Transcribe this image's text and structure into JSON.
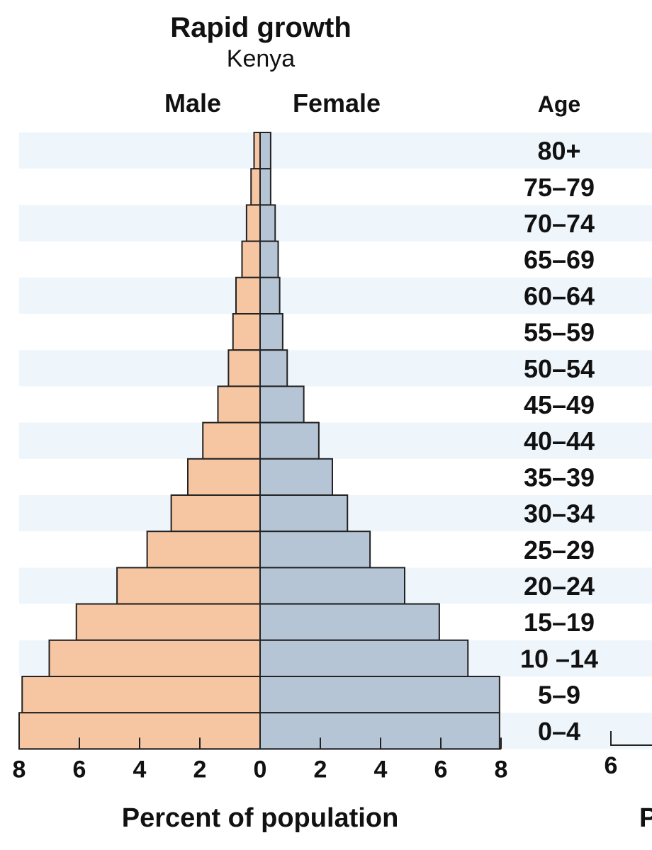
{
  "chart_data": {
    "type": "bar",
    "orientation": "horizontal-population-pyramid",
    "title": "Rapid growth",
    "subtitle": "Kenya",
    "series": [
      {
        "name": "Male",
        "values": [
          0.2,
          0.3,
          0.45,
          0.6,
          0.8,
          0.9,
          1.05,
          1.4,
          1.9,
          2.4,
          2.95,
          3.75,
          4.75,
          6.1,
          7.0,
          7.9,
          8.0
        ]
      },
      {
        "name": "Female",
        "values": [
          0.35,
          0.35,
          0.5,
          0.6,
          0.65,
          0.75,
          0.9,
          1.45,
          1.95,
          2.4,
          2.9,
          3.65,
          4.8,
          5.95,
          6.9,
          7.95,
          7.95
        ]
      }
    ],
    "categories": [
      "80+",
      "75–79",
      "70–74",
      "65–69",
      "60–64",
      "55–59",
      "50–54",
      "45–49",
      "40–44",
      "35–39",
      "30–34",
      "25–29",
      "20–24",
      "15–19",
      "10 –14",
      "5–9",
      "0–4"
    ],
    "age_header": "Age",
    "xlabel": "Percent of population",
    "xticks": [
      "8",
      "6",
      "4",
      "2",
      "0",
      "2",
      "4",
      "6",
      "8"
    ],
    "xlim": [
      -8,
      8
    ],
    "partial_next_chart": {
      "tick": "6",
      "xlabel_fragment": "P"
    }
  }
}
